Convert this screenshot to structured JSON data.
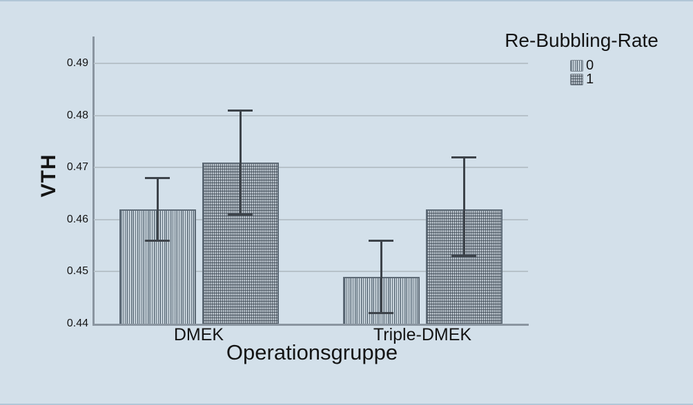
{
  "chart_data": {
    "type": "bar",
    "title": "",
    "xlabel": "Operationsgruppe",
    "ylabel": "VTH",
    "categories": [
      "DMEK",
      "Triple-DMEK"
    ],
    "series": [
      {
        "name": "0",
        "pattern": "vertical-stripes",
        "values": [
          0.462,
          0.449
        ],
        "error_low": [
          0.456,
          0.442
        ],
        "error_high": [
          0.468,
          0.456
        ]
      },
      {
        "name": "1",
        "pattern": "crosshatch-grid",
        "values": [
          0.471,
          0.462
        ],
        "error_low": [
          0.461,
          0.453
        ],
        "error_high": [
          0.481,
          0.472
        ]
      }
    ],
    "legend_title": "Re-Bubbling-Rate",
    "legend_position": "top-right",
    "ylim": [
      0.44,
      0.495
    ],
    "yticks": [
      0.44,
      0.45,
      0.46,
      0.47,
      0.48,
      0.49
    ],
    "grid": true
  },
  "colors": {
    "background": "#d3e0ea",
    "gridline": "#b6c1c9",
    "axis": "#8a95a0",
    "error_bar": "#3d434a",
    "text": "#141414"
  }
}
